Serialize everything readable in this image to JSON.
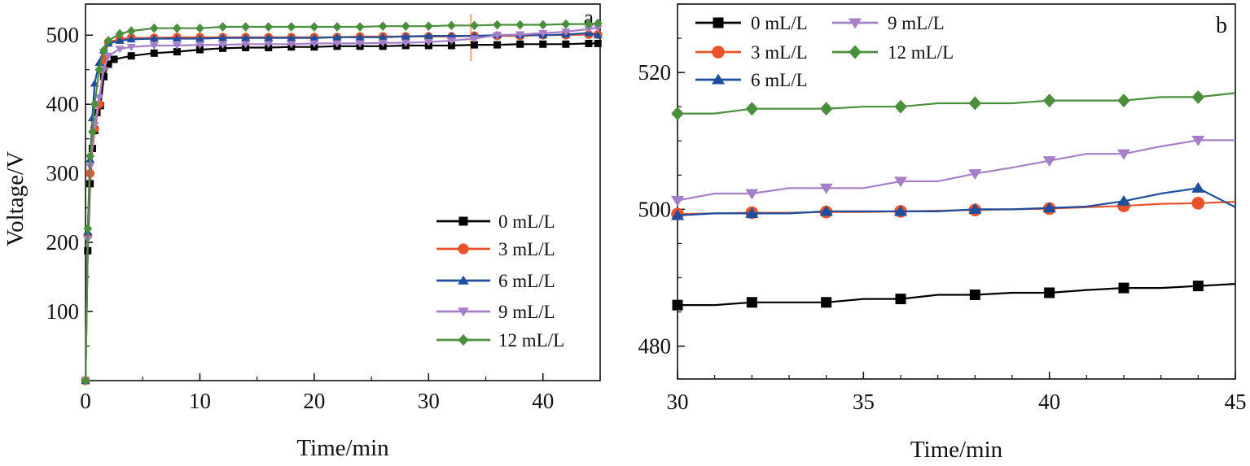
{
  "chart_data": [
    {
      "type": "line",
      "panel_label": "a",
      "xlabel": "Time/min",
      "ylabel": "Voltage/V",
      "xlim": [
        0,
        45
      ],
      "ylim": [
        0,
        545
      ],
      "xticks": [
        0,
        10,
        20,
        30,
        40
      ],
      "yticks": [
        100,
        200,
        300,
        400,
        500
      ],
      "grid": false,
      "legend_position": "bottom-right",
      "marker_reference_time": 33.7,
      "series": [
        {
          "name": "0 mL/L",
          "color": "#000000",
          "marker": "square",
          "x": [
            0,
            0.2,
            0.4,
            0.6,
            0.8,
            1,
            1.3,
            1.6,
            2,
            2.5,
            4,
            6,
            8,
            10,
            12,
            14,
            16,
            18,
            20,
            22,
            24,
            26,
            28,
            30,
            32,
            34,
            36,
            38,
            40,
            42,
            44,
            44.8
          ],
          "y": [
            0,
            188,
            285,
            336,
            362,
            388,
            398,
            440,
            458,
            465,
            470,
            474,
            476,
            479,
            481,
            482,
            482,
            483,
            483,
            484,
            484,
            484,
            485,
            485,
            485,
            486,
            486,
            487,
            487,
            487,
            488,
            488
          ]
        },
        {
          "name": "3 mL/L",
          "color": "#e8532b",
          "marker": "circle",
          "x": [
            0,
            0.2,
            0.4,
            0.8,
            1.2,
            1.6,
            2,
            3,
            4,
            6,
            8,
            10,
            12,
            14,
            16,
            18,
            20,
            22,
            24,
            26,
            28,
            30,
            32,
            34,
            36,
            38,
            40,
            42,
            44,
            44.8
          ],
          "y": [
            0,
            210,
            300,
            365,
            400,
            465,
            490,
            494,
            496,
            496,
            497,
            497,
            497,
            497,
            497,
            497,
            497,
            497,
            498,
            498,
            498,
            498,
            498,
            499,
            499,
            499,
            500,
            500,
            501,
            501
          ]
        },
        {
          "name": "6 mL/L",
          "color": "#1f4e9e",
          "marker": "triangle-up",
          "x": [
            0,
            0.2,
            0.4,
            0.6,
            0.8,
            1.2,
            1.6,
            2,
            3,
            4,
            6,
            8,
            10,
            12,
            14,
            16,
            18,
            20,
            22,
            24,
            26,
            28,
            30,
            32,
            34,
            36,
            38,
            40,
            42,
            44,
            44.8
          ],
          "y": [
            0,
            215,
            320,
            380,
            430,
            460,
            478,
            488,
            492,
            494,
            495,
            495,
            495,
            496,
            496,
            496,
            496,
            496,
            497,
            497,
            497,
            498,
            499,
            499,
            499,
            500,
            500,
            500,
            501,
            503,
            500
          ]
        },
        {
          "name": "9 mL/L",
          "color": "#a77fc9",
          "marker": "triangle-down",
          "x": [
            0,
            0.2,
            0.4,
            0.8,
            1.2,
            1.6,
            2,
            3,
            4,
            6,
            8,
            10,
            12,
            14,
            16,
            18,
            20,
            22,
            24,
            26,
            28,
            30,
            32,
            34,
            36,
            38,
            40,
            42,
            44,
            44.8
          ],
          "y": [
            0,
            205,
            310,
            370,
            410,
            450,
            470,
            480,
            483,
            485,
            485,
            486,
            486,
            487,
            487,
            487,
            488,
            488,
            488,
            489,
            489,
            490,
            492,
            495,
            500,
            501,
            503,
            505,
            509,
            510
          ]
        },
        {
          "name": "12 mL/L",
          "color": "#4a8f3c",
          "marker": "diamond",
          "x": [
            0,
            0.2,
            0.4,
            0.6,
            0.8,
            1.2,
            1.6,
            2,
            3,
            4,
            6,
            8,
            10,
            12,
            14,
            16,
            18,
            20,
            22,
            24,
            26,
            28,
            30,
            32,
            34,
            36,
            38,
            40,
            42,
            44,
            44.8
          ],
          "y": [
            0,
            220,
            325,
            360,
            400,
            450,
            478,
            492,
            502,
            506,
            510,
            510,
            510,
            512,
            512,
            512,
            512,
            512,
            512,
            512,
            513,
            513,
            513,
            514,
            514,
            515,
            515,
            515,
            516,
            516,
            517
          ]
        }
      ]
    },
    {
      "type": "line",
      "panel_label": "b",
      "xlabel": "Time/min",
      "ylabel": "",
      "xlim": [
        30,
        45
      ],
      "ylim": [
        475.2,
        530
      ],
      "xticks": [
        30,
        35,
        40,
        45
      ],
      "yticks": [
        480,
        500,
        520
      ],
      "grid": false,
      "legend_position": "top-left",
      "series": [
        {
          "name": "0 mL/L",
          "color": "#000000",
          "marker": "square",
          "x": [
            30,
            31,
            32,
            33,
            34,
            35,
            36,
            37,
            38,
            39,
            40,
            41,
            42,
            43,
            44,
            45
          ],
          "y": [
            486,
            486,
            486.4,
            486.4,
            486.4,
            486.9,
            486.9,
            487.5,
            487.5,
            487.8,
            487.8,
            488.2,
            488.5,
            488.5,
            488.8,
            489.1
          ],
          "marked_x": [
            30,
            32,
            34,
            36,
            38,
            40,
            42,
            44
          ]
        },
        {
          "name": "3 mL/L",
          "color": "#e8532b",
          "marker": "circle",
          "x": [
            30,
            31,
            32,
            33,
            34,
            35,
            36,
            37,
            38,
            39,
            40,
            41,
            42,
            43,
            44,
            45
          ],
          "y": [
            499.3,
            499.4,
            499.5,
            499.5,
            499.6,
            499.6,
            499.7,
            499.8,
            499.9,
            500,
            500.1,
            500.3,
            500.5,
            500.8,
            500.9,
            501.1
          ],
          "marked_x": [
            30,
            32,
            34,
            36,
            38,
            40,
            42,
            44
          ]
        },
        {
          "name": "6 mL/L",
          "color": "#1f4e9e",
          "marker": "triangle-up",
          "x": [
            30,
            31,
            32,
            33,
            34,
            35,
            36,
            37,
            38,
            39,
            40,
            41,
            42,
            43,
            44,
            45
          ],
          "y": [
            499.1,
            499.4,
            499.4,
            499.4,
            499.7,
            499.7,
            499.7,
            499.7,
            500,
            500,
            500.2,
            500.4,
            501.2,
            502.3,
            503.1,
            500.3
          ],
          "marked_x": [
            30,
            32,
            34,
            36,
            38,
            40,
            42,
            44
          ]
        },
        {
          "name": "9 mL/L",
          "color": "#a77fc9",
          "marker": "triangle-down",
          "x": [
            30,
            31,
            32,
            33,
            34,
            35,
            36,
            37,
            38,
            39,
            40,
            41,
            42,
            43,
            44,
            45
          ],
          "y": [
            501.3,
            502.3,
            502.3,
            503.1,
            503.1,
            503.1,
            504.1,
            504.1,
            505.2,
            506.1,
            507.1,
            508.1,
            508.1,
            509.2,
            510.1,
            510.1
          ],
          "marked_x": [
            30,
            32,
            34,
            36,
            38,
            40,
            42,
            44
          ]
        },
        {
          "name": "12 mL/L",
          "color": "#4a8f3c",
          "marker": "diamond",
          "x": [
            30,
            31,
            32,
            33,
            34,
            35,
            36,
            37,
            38,
            39,
            40,
            41,
            42,
            43,
            44,
            45
          ],
          "y": [
            514,
            514,
            514.7,
            514.7,
            514.7,
            515,
            515,
            515.5,
            515.5,
            515.5,
            515.9,
            515.9,
            515.9,
            516.4,
            516.4,
            517
          ],
          "marked_x": [
            30,
            32,
            34,
            36,
            38,
            40,
            42,
            44
          ]
        }
      ]
    }
  ]
}
